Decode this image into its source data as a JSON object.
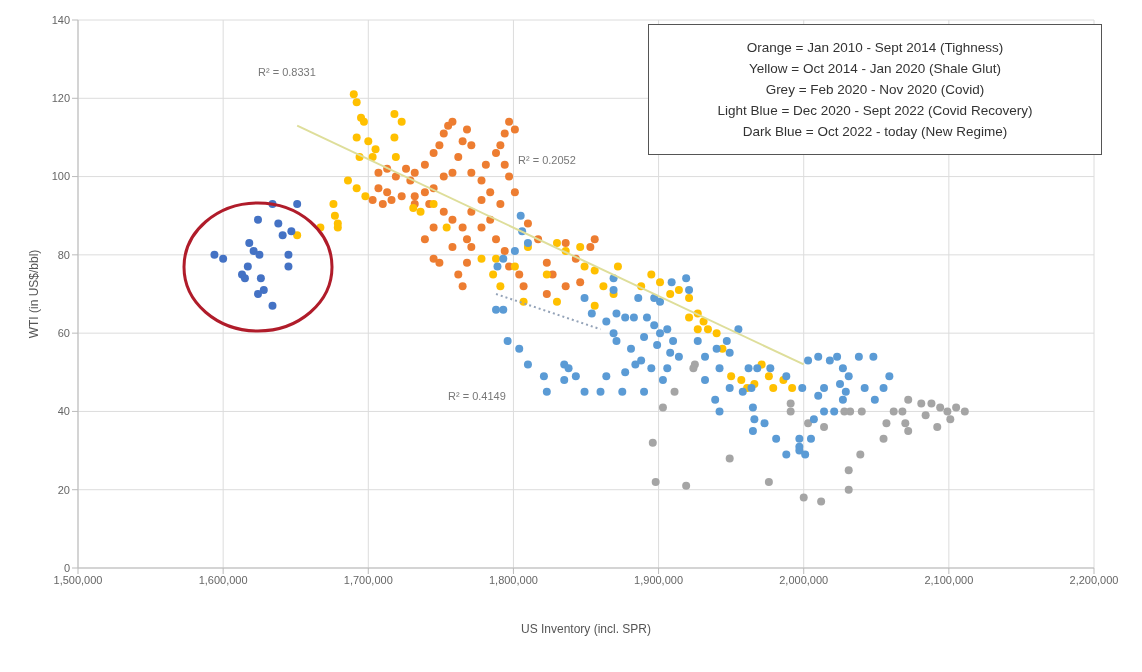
{
  "chart_data": {
    "type": "scatter",
    "xlabel": "US Inventory (incl. SPR)",
    "ylabel": "WTI (in US$/bbl)",
    "xlim": [
      1500000,
      2200000
    ],
    "xticks": [
      {
        "value": 1500000,
        "label": "1,500,000"
      },
      {
        "value": 1600000,
        "label": "1,600,000"
      },
      {
        "value": 1700000,
        "label": "1,700,000"
      },
      {
        "value": 1800000,
        "label": "1,800,000"
      },
      {
        "value": 1900000,
        "label": "1,900,000"
      },
      {
        "value": 2000000,
        "label": "2,000,000"
      },
      {
        "value": 2100000,
        "label": "2,100,000"
      },
      {
        "value": 2200000,
        "label": "2,200,000"
      }
    ],
    "ylim": [
      0,
      140
    ],
    "yticks": [
      0,
      20,
      40,
      60,
      80,
      100,
      120,
      140
    ],
    "grid": true,
    "legend": false,
    "marker": "circle",
    "annotations": [
      "R² = 0.8331",
      "R² = 0.2052",
      "R² = 0.4149",
      "Orange = Jan 2010  - Sept 2014  (Tighness)",
      "Yellow = Oct 2014  - Jan 2020  (Shale Glut)",
      "Grey = Feb 2020  - Nov 2020  (Covid)",
      "Light Blue = Dec 2020  - Sept 2022  (Covid Recovery)",
      "Dark Blue = Oct 2022  - today (New Regime)"
    ],
    "series": [
      {
        "color": "#ed7d31",
        "x": [
          1707000,
          1713000,
          1719000,
          1726000,
          1729000,
          1732000,
          1739000,
          1745000,
          1749000,
          1752000,
          1755000,
          1758000,
          1765000,
          1768000,
          1771000,
          1762000,
          1758000,
          1752000,
          1745000,
          1739000,
          1732000,
          1723000,
          1713000,
          1707000,
          1703000,
          1710000,
          1716000,
          1732000,
          1742000,
          1752000,
          1758000,
          1765000,
          1768000,
          1771000,
          1778000,
          1784000,
          1778000,
          1771000,
          1781000,
          1788000,
          1791000,
          1794000,
          1797000,
          1801000,
          1794000,
          1797000,
          1801000,
          1791000,
          1784000,
          1778000,
          1771000,
          1768000,
          1758000,
          1762000,
          1765000,
          1788000,
          1794000,
          1797000,
          1804000,
          1807000,
          1810000,
          1817000,
          1823000,
          1827000,
          1836000,
          1843000,
          1853000,
          1856000,
          1745000,
          1739000,
          1745000,
          1749000,
          1836000,
          1846000,
          1823000
        ],
        "values": [
          101,
          102,
          100,
          102,
          99,
          101,
          103,
          106,
          108,
          111,
          113,
          114,
          109,
          112,
          108,
          105,
          101,
          100,
          97,
          96,
          95,
          95,
          96,
          97,
          94,
          93,
          94,
          93,
          93,
          91,
          89,
          87,
          84,
          91,
          94,
          96,
          99,
          101,
          103,
          106,
          108,
          111,
          114,
          112,
          103,
          100,
          96,
          93,
          89,
          87,
          82,
          78,
          82,
          75,
          72,
          84,
          81,
          77,
          75,
          72,
          88,
          84,
          78,
          75,
          83,
          79,
          82,
          84,
          87,
          84,
          79,
          78,
          72,
          73,
          70
        ]
      },
      {
        "color": "#ffc000",
        "x": [
          1690000,
          1692000,
          1695000,
          1697000,
          1692000,
          1700000,
          1705000,
          1694000,
          1703000,
          1718000,
          1723000,
          1718000,
          1719000,
          1686000,
          1692000,
          1698000,
          1676000,
          1677000,
          1679000,
          1679000,
          1667000,
          1651000,
          1731000,
          1736000,
          1745000,
          1754000,
          1778000,
          1791000,
          1786000,
          1830000,
          1836000,
          1846000,
          1849000,
          1862000,
          1869000,
          1856000,
          1888000,
          1895000,
          1901000,
          1908000,
          1914000,
          1921000,
          1927000,
          1931000,
          1934000,
          1940000,
          1944000,
          1921000,
          1927000,
          1950000,
          1957000,
          1966000,
          1976000,
          1986000,
          1992000,
          1979000,
          1971000,
          1961000,
          1872000,
          1856000,
          1830000,
          1807000,
          1823000,
          1810000,
          1801000,
          1788000
        ],
        "values": [
          121,
          119,
          115,
          114,
          110,
          109,
          107,
          105,
          105,
          116,
          114,
          110,
          105,
          99,
          97,
          95,
          93,
          90,
          88,
          87,
          87,
          85,
          92,
          91,
          93,
          87,
          79,
          72,
          75,
          83,
          81,
          82,
          77,
          72,
          70,
          67,
          72,
          75,
          73,
          70,
          71,
          69,
          65,
          63,
          61,
          60,
          56,
          64,
          61,
          49,
          48,
          47,
          49,
          48,
          46,
          46,
          52,
          46,
          77,
          76,
          68,
          68,
          75,
          82,
          77,
          79
        ]
      },
      {
        "color": "#a5a5a5",
        "x": [
          1925000,
          1924000,
          1911000,
          1903000,
          1896000,
          1898000,
          1919000,
          1949000,
          1976000,
          1991000,
          1991000,
          2000000,
          2072000,
          2081000,
          2088000,
          2094000,
          2099000,
          2105000,
          2111000,
          2101000,
          2092000,
          2084000,
          2072000,
          2070000,
          2068000,
          2062000,
          2057000,
          2055000,
          2039000,
          2031000,
          2031000,
          2012000,
          2040000,
          2032000,
          2028000,
          2003000,
          2014000
        ],
        "values": [
          52,
          51,
          45,
          41,
          32,
          22,
          21,
          28,
          22,
          42,
          40,
          18,
          43,
          42,
          42,
          41,
          40,
          41,
          40,
          38,
          36,
          39,
          35,
          37,
          40,
          40,
          37,
          33,
          29,
          25,
          20,
          17,
          40,
          40,
          40,
          37,
          36
        ]
      },
      {
        "color": "#5b9bd5",
        "x": [
          1805000,
          1806000,
          1810000,
          1801000,
          1793000,
          1789000,
          1788000,
          1793000,
          1796000,
          1804000,
          1810000,
          1821000,
          1823000,
          1835000,
          1838000,
          1843000,
          1835000,
          1849000,
          1860000,
          1864000,
          1875000,
          1890000,
          1877000,
          1881000,
          1884000,
          1888000,
          1895000,
          1903000,
          1869000,
          1869000,
          1849000,
          1854000,
          1864000,
          1869000,
          1871000,
          1871000,
          1877000,
          1883000,
          1886000,
          1892000,
          1897000,
          1901000,
          1909000,
          1919000,
          1921000,
          1890000,
          1897000,
          1901000,
          1906000,
          1910000,
          1899000,
          1908000,
          1914000,
          1906000,
          1927000,
          1932000,
          1932000,
          1940000,
          1947000,
          1955000,
          1949000,
          1942000,
          1949000,
          1958000,
          1964000,
          1962000,
          1968000,
          1977000,
          1988000,
          1939000,
          1942000,
          1965000,
          1966000,
          1973000,
          1965000,
          1981000,
          1988000,
          1997000,
          2003000,
          2010000,
          2018000,
          2023000,
          2027000,
          2025000,
          2029000,
          2031000,
          2027000,
          2038000,
          2048000,
          2042000,
          2049000,
          2055000,
          2059000,
          2014000,
          2010000,
          1999000,
          2014000,
          2021000,
          2007000,
          2005000,
          1997000,
          1997000,
          2001000
        ],
        "values": [
          90,
          86,
          83,
          81,
          79,
          77,
          66,
          66,
          58,
          56,
          52,
          49,
          45,
          52,
          51,
          49,
          48,
          45,
          45,
          49,
          45,
          45,
          50,
          56,
          52,
          53,
          51,
          48,
          74,
          71,
          69,
          65,
          63,
          60,
          58,
          65,
          64,
          64,
          69,
          64,
          69,
          68,
          73,
          74,
          71,
          59,
          62,
          60,
          61,
          58,
          57,
          55,
          54,
          51,
          58,
          54,
          48,
          56,
          58,
          61,
          55,
          51,
          46,
          45,
          46,
          51,
          51,
          51,
          49,
          43,
          40,
          41,
          38,
          37,
          35,
          33,
          29,
          31,
          53,
          54,
          53,
          54,
          51,
          47,
          45,
          49,
          43,
          54,
          54,
          46,
          43,
          46,
          49,
          46,
          44,
          46,
          40,
          40,
          38,
          33,
          33,
          30,
          29
        ]
      },
      {
        "color": "#4472c4",
        "x": [
          1634000,
          1651000,
          1624000,
          1638000,
          1641000,
          1647000,
          1594000,
          1600000,
          1618000,
          1621000,
          1625000,
          1617000,
          1613000,
          1615000,
          1645000,
          1645000,
          1626000,
          1628000,
          1624000,
          1634000
        ],
        "values": [
          93,
          93,
          89,
          88,
          85,
          86,
          80,
          79,
          83,
          81,
          80,
          77,
          75,
          74,
          80,
          77,
          74,
          71,
          70,
          67
        ]
      },
      {
        "type": "line",
        "color": "#dede9a",
        "marker": "none",
        "line_style": "solid",
        "x": [
          1651000,
          2000000
        ],
        "values": [
          113,
          52
        ]
      },
      {
        "type": "line",
        "color": "#94a3b8",
        "marker": "none",
        "line_style": "dotted",
        "x": [
          1788000,
          1860000
        ],
        "values": [
          70,
          61
        ]
      }
    ]
  }
}
